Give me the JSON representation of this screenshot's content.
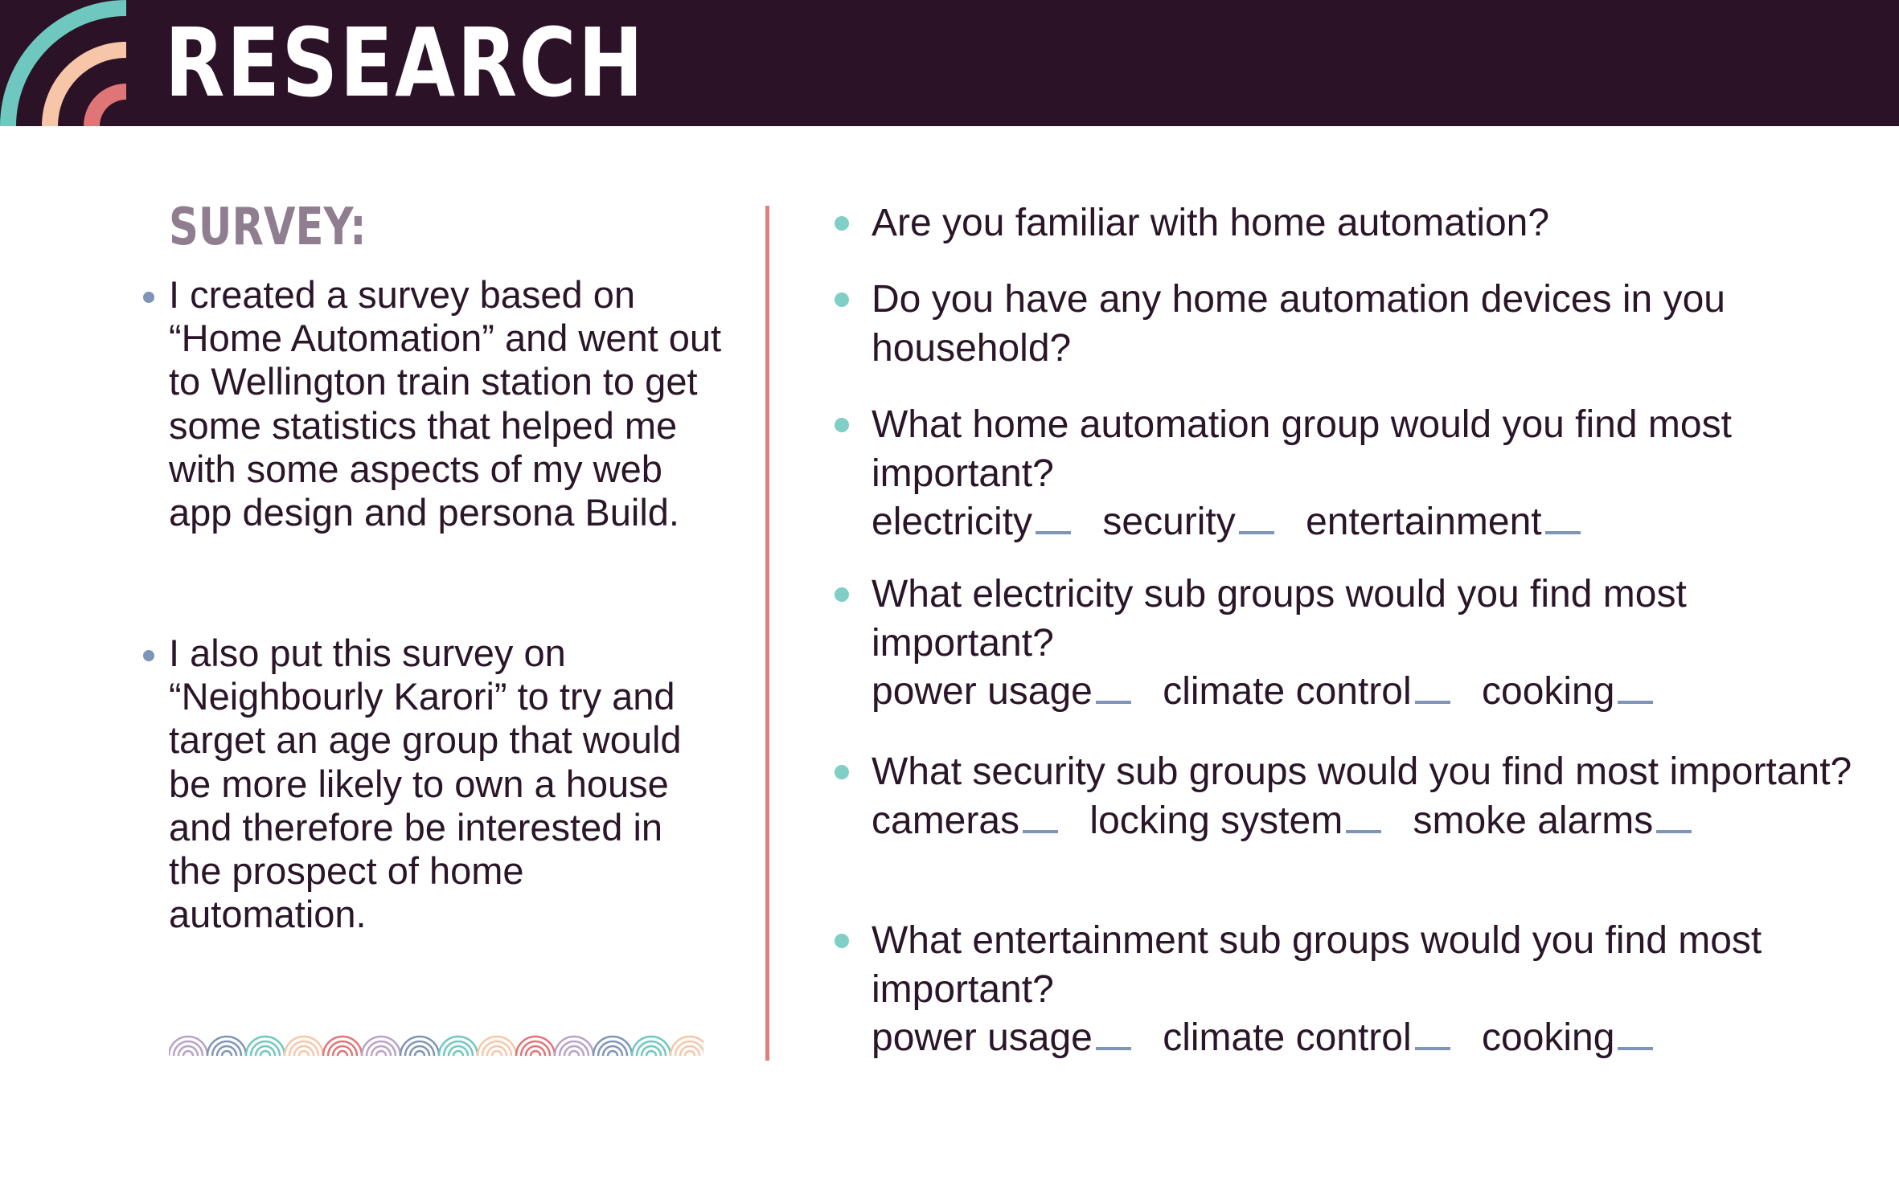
{
  "header": {
    "title": "RESEARCH",
    "logo_colors": [
      "#6fc8bf",
      "#f7c6a8",
      "#e07577"
    ]
  },
  "left": {
    "heading": "SURVEY:",
    "bullets": [
      "I created a survey based on “Home Automation” and went out to Wellington train station to get some statistics that helped me with some aspects of my web app design and persona Build.",
      "I also put this survey on “Neighbourly Karori” to try and target an age group that would be more likely to own a house and therefore be interested in the prospect of home automation."
    ]
  },
  "questions": [
    {
      "text": "Are you familiar with home automation?",
      "options": []
    },
    {
      "text": "Do you have any home automation devices in you household?",
      "options": []
    },
    {
      "text": "What home automation group would you find most important?",
      "options": [
        "electricity",
        "security",
        "entertainment"
      ]
    },
    {
      "text": "What electricity sub groups would you find most important?",
      "options": [
        "power usage",
        "climate control",
        "cooking"
      ]
    },
    {
      "text": "What security sub groups would you find most important?",
      "options": [
        "cameras",
        "locking system",
        "smoke alarms"
      ]
    },
    {
      "text": "What entertainment sub groups would you find most important?",
      "options": [
        "power usage",
        "climate control",
        "cooking"
      ]
    }
  ],
  "colors": {
    "header_bg": "#2b1226",
    "divider": "#e07f80",
    "bullet_left": "#7f95b8",
    "bullet_right": "#7fcfc6",
    "blank_line": "#7f95b8",
    "wave_palette": [
      "#b9a2c7",
      "#7f95b8",
      "#6fc8bf",
      "#f7c6a8",
      "#e07577"
    ]
  }
}
